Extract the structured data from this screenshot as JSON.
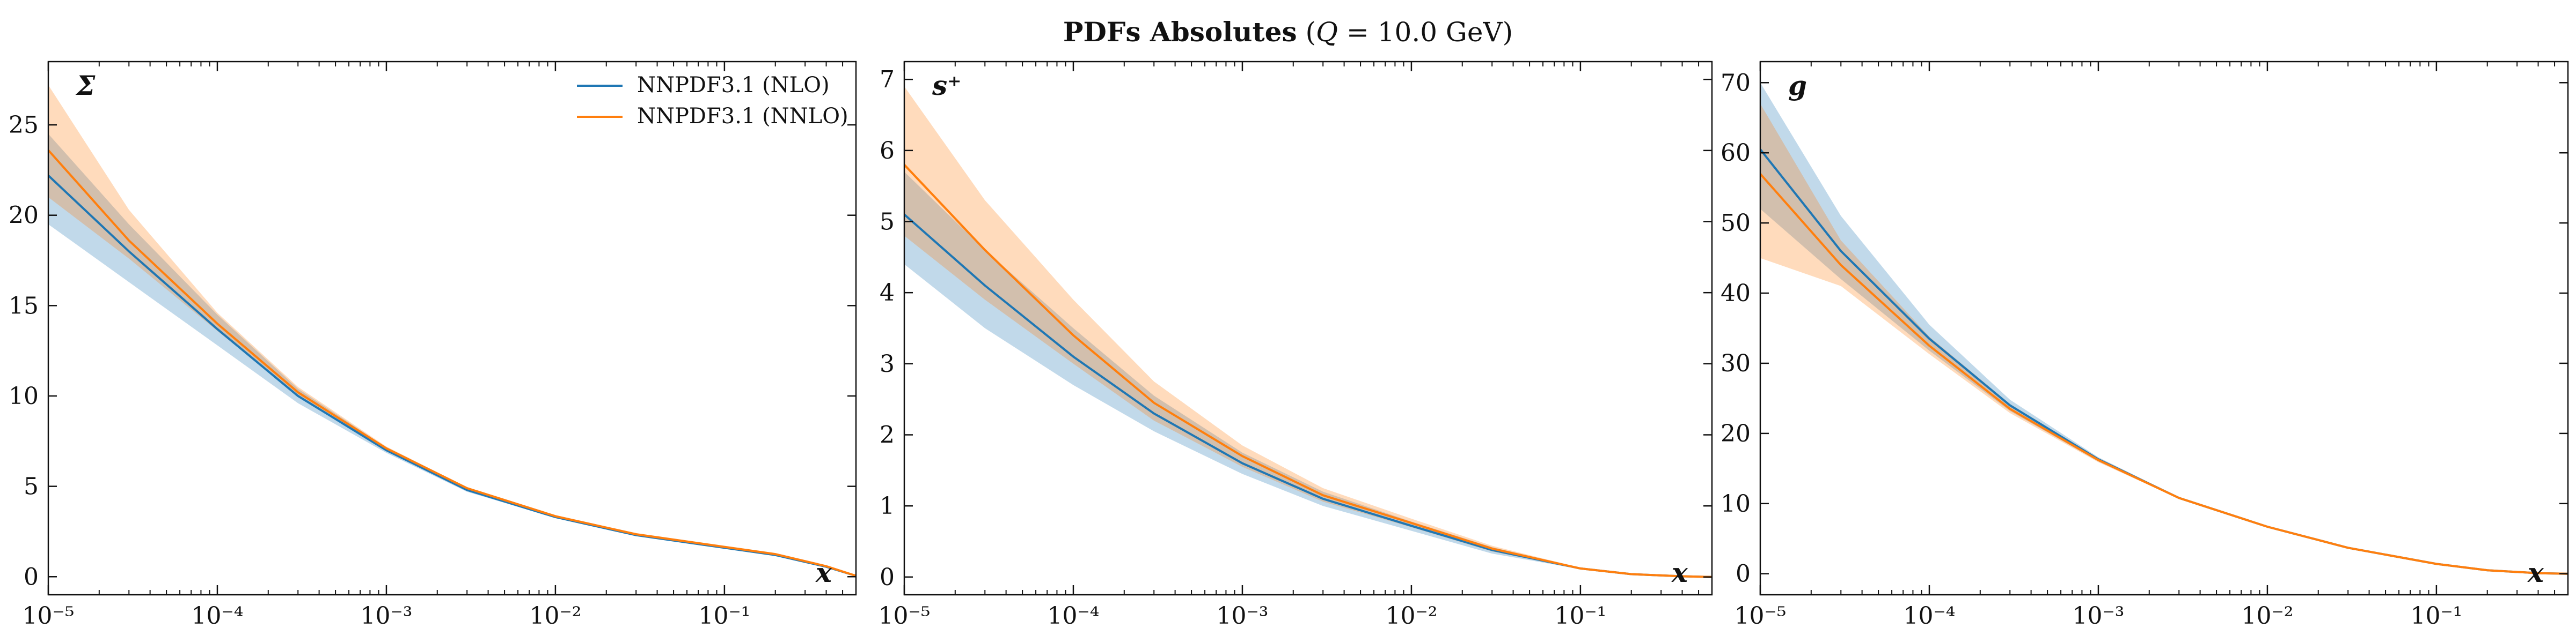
{
  "title": {
    "main": "PDFs Absolutes",
    "paren_open": "(",
    "qvar": "Q",
    "rest": "= 10.0 GeV)"
  },
  "colors": {
    "nlo": "#1f77b4",
    "nnlo": "#ff7f0e"
  },
  "chart_data": [
    {
      "type": "line",
      "panel_label": "Σ",
      "xlabel": "x",
      "xscale": "log",
      "xlim": [
        1e-05,
        0.6
      ],
      "ylim": [
        -1,
        28.5
      ],
      "yticks": [
        0,
        5,
        10,
        15,
        20,
        25
      ],
      "xticks": [
        "10^-5",
        "10^-4",
        "10^-3",
        "10^-2",
        "10^-1"
      ],
      "legend": "top-right",
      "x": [
        1e-05,
        3e-05,
        0.0001,
        0.0003,
        0.001,
        0.003,
        0.01,
        0.03,
        0.1,
        0.2,
        0.4,
        0.6
      ],
      "series": [
        {
          "name": "NNPDF3.1 (NLO)",
          "color": "nlo",
          "values": [
            22.2,
            18.0,
            13.7,
            10.0,
            7.0,
            4.8,
            3.3,
            2.3,
            1.6,
            1.2,
            0.55,
            0.05
          ],
          "lower": [
            19.5,
            16.3,
            12.8,
            9.6,
            6.85,
            4.7,
            3.25,
            2.25,
            1.55,
            1.17,
            0.53,
            0.05
          ],
          "upper": [
            24.5,
            19.5,
            14.5,
            10.4,
            7.15,
            4.9,
            3.35,
            2.35,
            1.65,
            1.23,
            0.57,
            0.05
          ]
        },
        {
          "name": "NNPDF3.1 (NNLO)",
          "color": "nnlo",
          "values": [
            23.6,
            18.6,
            14.0,
            10.2,
            7.1,
            4.9,
            3.35,
            2.35,
            1.65,
            1.25,
            0.58,
            0.05
          ],
          "lower": [
            21.0,
            17.6,
            13.6,
            10.0,
            7.0,
            4.85,
            3.3,
            2.32,
            1.62,
            1.22,
            0.56,
            0.05
          ],
          "upper": [
            27.2,
            20.3,
            14.6,
            10.5,
            7.2,
            4.95,
            3.4,
            2.38,
            1.68,
            1.28,
            0.6,
            0.05
          ]
        }
      ]
    },
    {
      "type": "line",
      "panel_label": "s⁺",
      "xlabel": "x",
      "xscale": "log",
      "xlim": [
        1e-05,
        0.6
      ],
      "ylim": [
        -0.25,
        7.25
      ],
      "yticks": [
        0,
        1,
        2,
        3,
        4,
        5,
        6,
        7
      ],
      "xticks": [
        "10^-5",
        "10^-4",
        "10^-3",
        "10^-2",
        "10^-1"
      ],
      "x": [
        1e-05,
        3e-05,
        0.0001,
        0.0003,
        0.001,
        0.003,
        0.01,
        0.03,
        0.1,
        0.2,
        0.4,
        0.6
      ],
      "series": [
        {
          "name": "NNPDF3.1 (NLO)",
          "color": "nlo",
          "values": [
            5.1,
            4.1,
            3.1,
            2.3,
            1.6,
            1.1,
            0.72,
            0.38,
            0.12,
            0.04,
            0.01,
            0.0
          ],
          "lower": [
            4.4,
            3.5,
            2.7,
            2.05,
            1.45,
            1.0,
            0.65,
            0.33,
            0.11,
            0.04,
            0.01,
            0.0
          ],
          "upper": [
            5.7,
            4.6,
            3.5,
            2.55,
            1.75,
            1.2,
            0.78,
            0.42,
            0.13,
            0.04,
            0.01,
            0.0
          ]
        },
        {
          "name": "NNPDF3.1 (NNLO)",
          "color": "nnlo",
          "values": [
            5.8,
            4.6,
            3.4,
            2.45,
            1.7,
            1.15,
            0.76,
            0.4,
            0.12,
            0.04,
            0.01,
            0.0
          ],
          "lower": [
            4.8,
            3.9,
            3.0,
            2.2,
            1.55,
            1.06,
            0.7,
            0.36,
            0.11,
            0.04,
            0.01,
            0.0
          ],
          "upper": [
            6.9,
            5.3,
            3.9,
            2.75,
            1.85,
            1.25,
            0.82,
            0.44,
            0.13,
            0.04,
            0.01,
            0.0
          ]
        }
      ]
    },
    {
      "type": "line",
      "panel_label": "g",
      "xlabel": "x",
      "xscale": "log",
      "xlim": [
        1e-05,
        0.6
      ],
      "ylim": [
        -3,
        73
      ],
      "yticks": [
        0,
        10,
        20,
        30,
        40,
        50,
        60,
        70
      ],
      "xticks": [
        "10^-5",
        "10^-4",
        "10^-3",
        "10^-2",
        "10^-1"
      ],
      "x": [
        1e-05,
        3e-05,
        0.0001,
        0.0003,
        0.001,
        0.003,
        0.01,
        0.03,
        0.1,
        0.2,
        0.4,
        0.6
      ],
      "series": [
        {
          "name": "NNPDF3.1 (NLO)",
          "color": "nlo",
          "values": [
            60.5,
            46.0,
            33.5,
            24.0,
            16.3,
            10.8,
            6.7,
            3.7,
            1.4,
            0.5,
            0.08,
            0.0
          ],
          "lower": [
            52.0,
            42.0,
            31.8,
            23.2,
            16.0,
            10.7,
            6.65,
            3.68,
            1.4,
            0.5,
            0.08,
            0.0
          ],
          "upper": [
            70.0,
            51.0,
            35.5,
            24.8,
            16.6,
            10.9,
            6.75,
            3.72,
            1.4,
            0.5,
            0.08,
            0.0
          ]
        },
        {
          "name": "NNPDF3.1 (NNLO)",
          "color": "nnlo",
          "values": [
            57.0,
            44.0,
            32.5,
            23.5,
            16.2,
            10.8,
            6.7,
            3.7,
            1.4,
            0.5,
            0.08,
            0.0
          ],
          "lower": [
            45.0,
            41.0,
            31.3,
            22.9,
            15.9,
            10.7,
            6.65,
            3.68,
            1.4,
            0.5,
            0.08,
            0.0
          ],
          "upper": [
            67.0,
            47.5,
            33.8,
            24.2,
            16.5,
            10.9,
            6.75,
            3.72,
            1.4,
            0.5,
            0.08,
            0.0
          ]
        }
      ]
    }
  ]
}
